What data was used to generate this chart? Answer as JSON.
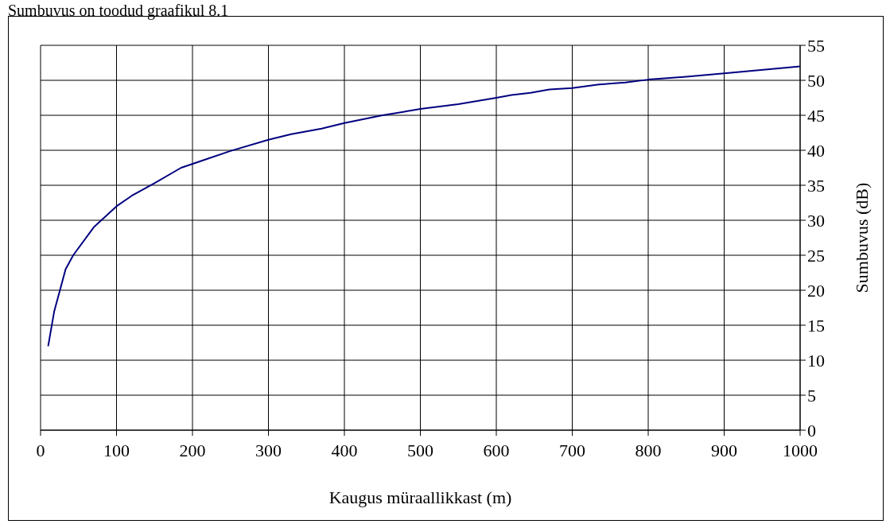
{
  "chart_data": {
    "type": "line",
    "title": "Sumbuvus on toodud graafikul 8.1",
    "xlabel": "Kaugus müraallikkast (m)",
    "ylabel": "Sumbuvus (dB)",
    "x": [
      10,
      18,
      28,
      33,
      43,
      70,
      100,
      120,
      150,
      185,
      215,
      250,
      300,
      330,
      370,
      400,
      450,
      500,
      550,
      600,
      620,
      645,
      670,
      700,
      735,
      770,
      800,
      850,
      900,
      1000
    ],
    "series": [
      {
        "color": "#000080",
        "values": [
          12,
          17,
          21,
          23,
          25,
          29,
          32,
          33.5,
          35.3,
          37.5,
          38.6,
          39.9,
          41.5,
          42.3,
          43.1,
          43.9,
          45,
          45.9,
          46.6,
          47.5,
          47.9,
          48.2,
          48.7,
          48.9,
          49.4,
          49.7,
          50.1,
          50.5,
          51,
          52
        ]
      }
    ],
    "xlim": [
      0,
      1000
    ],
    "xticks": [
      0,
      100,
      200,
      300,
      400,
      500,
      600,
      700,
      800,
      900,
      1000
    ],
    "ylim": [
      0,
      55
    ],
    "yticks": [
      0,
      5,
      10,
      15,
      20,
      25,
      30,
      35,
      40,
      45,
      50,
      55
    ],
    "grid": true,
    "marker": "none",
    "line_style": "solid",
    "legend": false
  }
}
